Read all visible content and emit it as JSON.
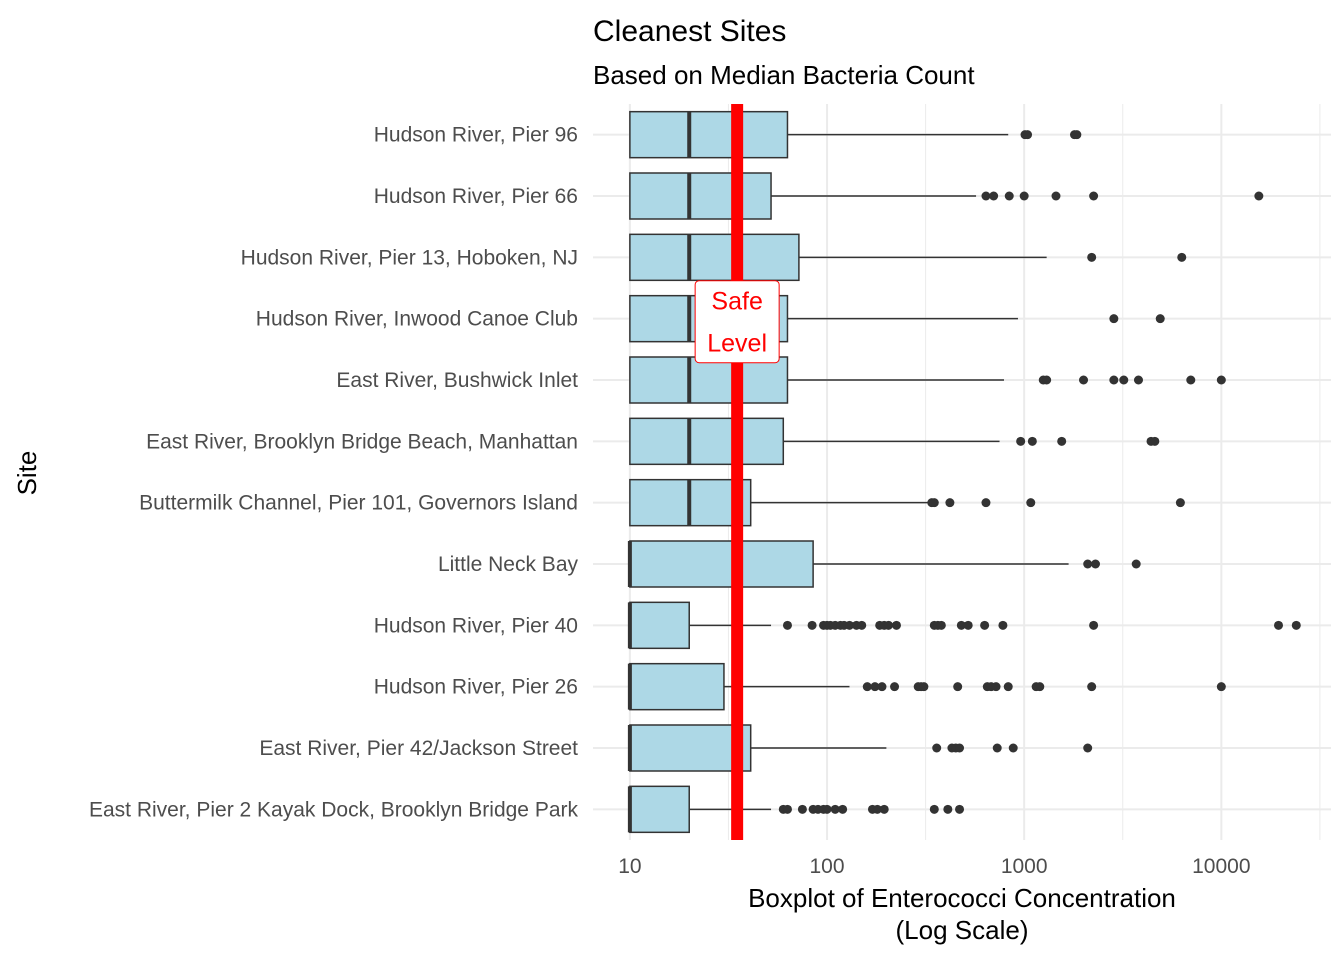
{
  "chart_data": {
    "type": "boxplot",
    "title": "Cleanest Sites",
    "subtitle": "Based on Median Bacteria Count",
    "xlabel": "Boxplot of Enterococci Concentration\n(Log Scale)",
    "ylabel": "Site",
    "x_scale": "log10",
    "xlim": [
      6.5,
      36000
    ],
    "x_ticks": [
      10,
      100,
      1000,
      10000
    ],
    "x_tick_labels": [
      "10",
      "100",
      "1000",
      "10000"
    ],
    "grid": true,
    "box_fill": "#add8e6",
    "box_stroke": "#333333",
    "point_color": "#333333",
    "reference_line": {
      "value": 35,
      "color": "#ff0000",
      "label_lines": [
        "Safe",
        "Level"
      ]
    },
    "series": [
      {
        "site": "Hudson River, Pier 96",
        "q1": 10,
        "median": 20,
        "q3": 63,
        "whisker_low": 10,
        "whisker_high": 830,
        "outliers": [
          1010,
          1040,
          1800,
          1850
        ]
      },
      {
        "site": "Hudson River, Pier 66",
        "q1": 10,
        "median": 20,
        "q3": 52,
        "whisker_low": 10,
        "whisker_high": 570,
        "outliers": [
          640,
          700,
          840,
          1000,
          1450,
          2250,
          15500
        ]
      },
      {
        "site": "Hudson River, Pier 13, Hoboken, NJ",
        "q1": 10,
        "median": 20,
        "q3": 72,
        "whisker_low": 10,
        "whisker_high": 1300,
        "outliers": [
          2200,
          6300
        ]
      },
      {
        "site": "Hudson River, Inwood Canoe Club",
        "q1": 10,
        "median": 20,
        "q3": 63,
        "whisker_low": 10,
        "whisker_high": 930,
        "outliers": [
          2850,
          4900
        ]
      },
      {
        "site": "East River, Bushwick Inlet",
        "q1": 10,
        "median": 20,
        "q3": 63,
        "whisker_low": 10,
        "whisker_high": 790,
        "outliers": [
          1250,
          1300,
          2000,
          2850,
          3200,
          3800,
          7000,
          10000
        ]
      },
      {
        "site": "East River, Brooklyn Bridge Beach, Manhattan",
        "q1": 10,
        "median": 20,
        "q3": 60,
        "whisker_low": 10,
        "whisker_high": 750,
        "outliers": [
          960,
          1100,
          1550,
          4400,
          4600
        ]
      },
      {
        "site": "Buttermilk Channel, Pier 101, Governors Island",
        "q1": 10,
        "median": 20,
        "q3": 41,
        "whisker_low": 10,
        "whisker_high": 330,
        "outliers": [
          340,
          350,
          420,
          640,
          1080,
          6200
        ]
      },
      {
        "site": "Little Neck Bay",
        "q1": 10,
        "median": 10,
        "q3": 85,
        "whisker_low": 10,
        "whisker_high": 1680,
        "outliers": [
          2100,
          2300,
          3700
        ]
      },
      {
        "site": "Hudson River, Pier 40",
        "q1": 10,
        "median": 10,
        "q3": 20,
        "whisker_low": 10,
        "whisker_high": 52,
        "outliers": [
          63,
          84,
          96,
          100,
          104,
          110,
          117,
          122,
          130,
          141,
          150,
          185,
          195,
          205,
          225,
          350,
          365,
          380,
          480,
          520,
          630,
          780,
          2250,
          19500,
          24000
        ]
      },
      {
        "site": "Hudson River, Pier 26",
        "q1": 10,
        "median": 10,
        "q3": 30,
        "whisker_low": 10,
        "whisker_high": 130,
        "outliers": [
          160,
          175,
          190,
          220,
          290,
          300,
          310,
          460,
          650,
          680,
          720,
          830,
          1150,
          1200,
          2200,
          10000
        ]
      },
      {
        "site": "East River, Pier 42/Jackson Street",
        "q1": 10,
        "median": 10,
        "q3": 41,
        "whisker_low": 10,
        "whisker_high": 200,
        "outliers": [
          360,
          430,
          450,
          470,
          730,
          880,
          2100
        ]
      },
      {
        "site": "East River, Pier 2 Kayak Dock, Brooklyn Bridge Park",
        "q1": 10,
        "median": 10,
        "q3": 20,
        "whisker_low": 10,
        "whisker_high": 52,
        "outliers": [
          60,
          63,
          75,
          85,
          90,
          96,
          100,
          110,
          120,
          170,
          180,
          195,
          350,
          410,
          470
        ]
      }
    ]
  }
}
